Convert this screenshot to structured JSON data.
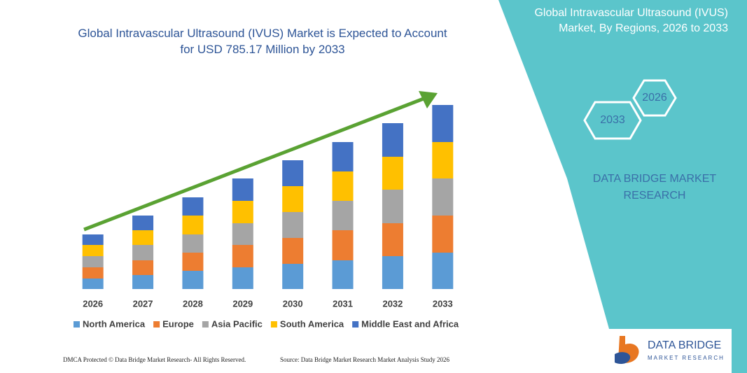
{
  "chart_data": {
    "type": "bar",
    "stacked": true,
    "title": "Global Intravascular Ultrasound (IVUS) Market is Expected to Account for USD 785.17 Million by 2033",
    "categories": [
      "2026",
      "2027",
      "2028",
      "2029",
      "2030",
      "2031",
      "2032",
      "2033"
    ],
    "series": [
      {
        "name": "North America",
        "color": "#5b9bd5",
        "values": [
          15,
          20,
          26,
          31,
          36,
          41,
          47,
          52
        ]
      },
      {
        "name": "Europe",
        "color": "#ed7d31",
        "values": [
          16,
          21,
          26,
          32,
          37,
          43,
          47,
          53
        ]
      },
      {
        "name": "Asia Pacific",
        "color": "#a5a5a5",
        "values": [
          16,
          22,
          26,
          31,
          37,
          42,
          48,
          53
        ]
      },
      {
        "name": "South America",
        "color": "#ffc000",
        "values": [
          16,
          21,
          27,
          32,
          37,
          42,
          47,
          52
        ]
      },
      {
        "name": "Middle East and Africa",
        "color": "#4472c4",
        "values": [
          15,
          21,
          26,
          32,
          37,
          42,
          48,
          53
        ]
      }
    ]
  },
  "panel": {
    "title": "Global Intravascular Ultrasound (IVUS) Market, By Regions, 2026 to 2033",
    "hexagons": [
      "2026",
      "2033"
    ],
    "brand": "DATA BRIDGE MARKET RESEARCH"
  },
  "footer": {
    "dmca": "DMCA Protected © Data Bridge Market Research- All Rights Reserved.",
    "source": "Source: Data Bridge Market Research Market Analysis Study 2026"
  },
  "logo": {
    "name": "DATA BRIDGE",
    "tagline": "MARKET RESEARCH"
  }
}
